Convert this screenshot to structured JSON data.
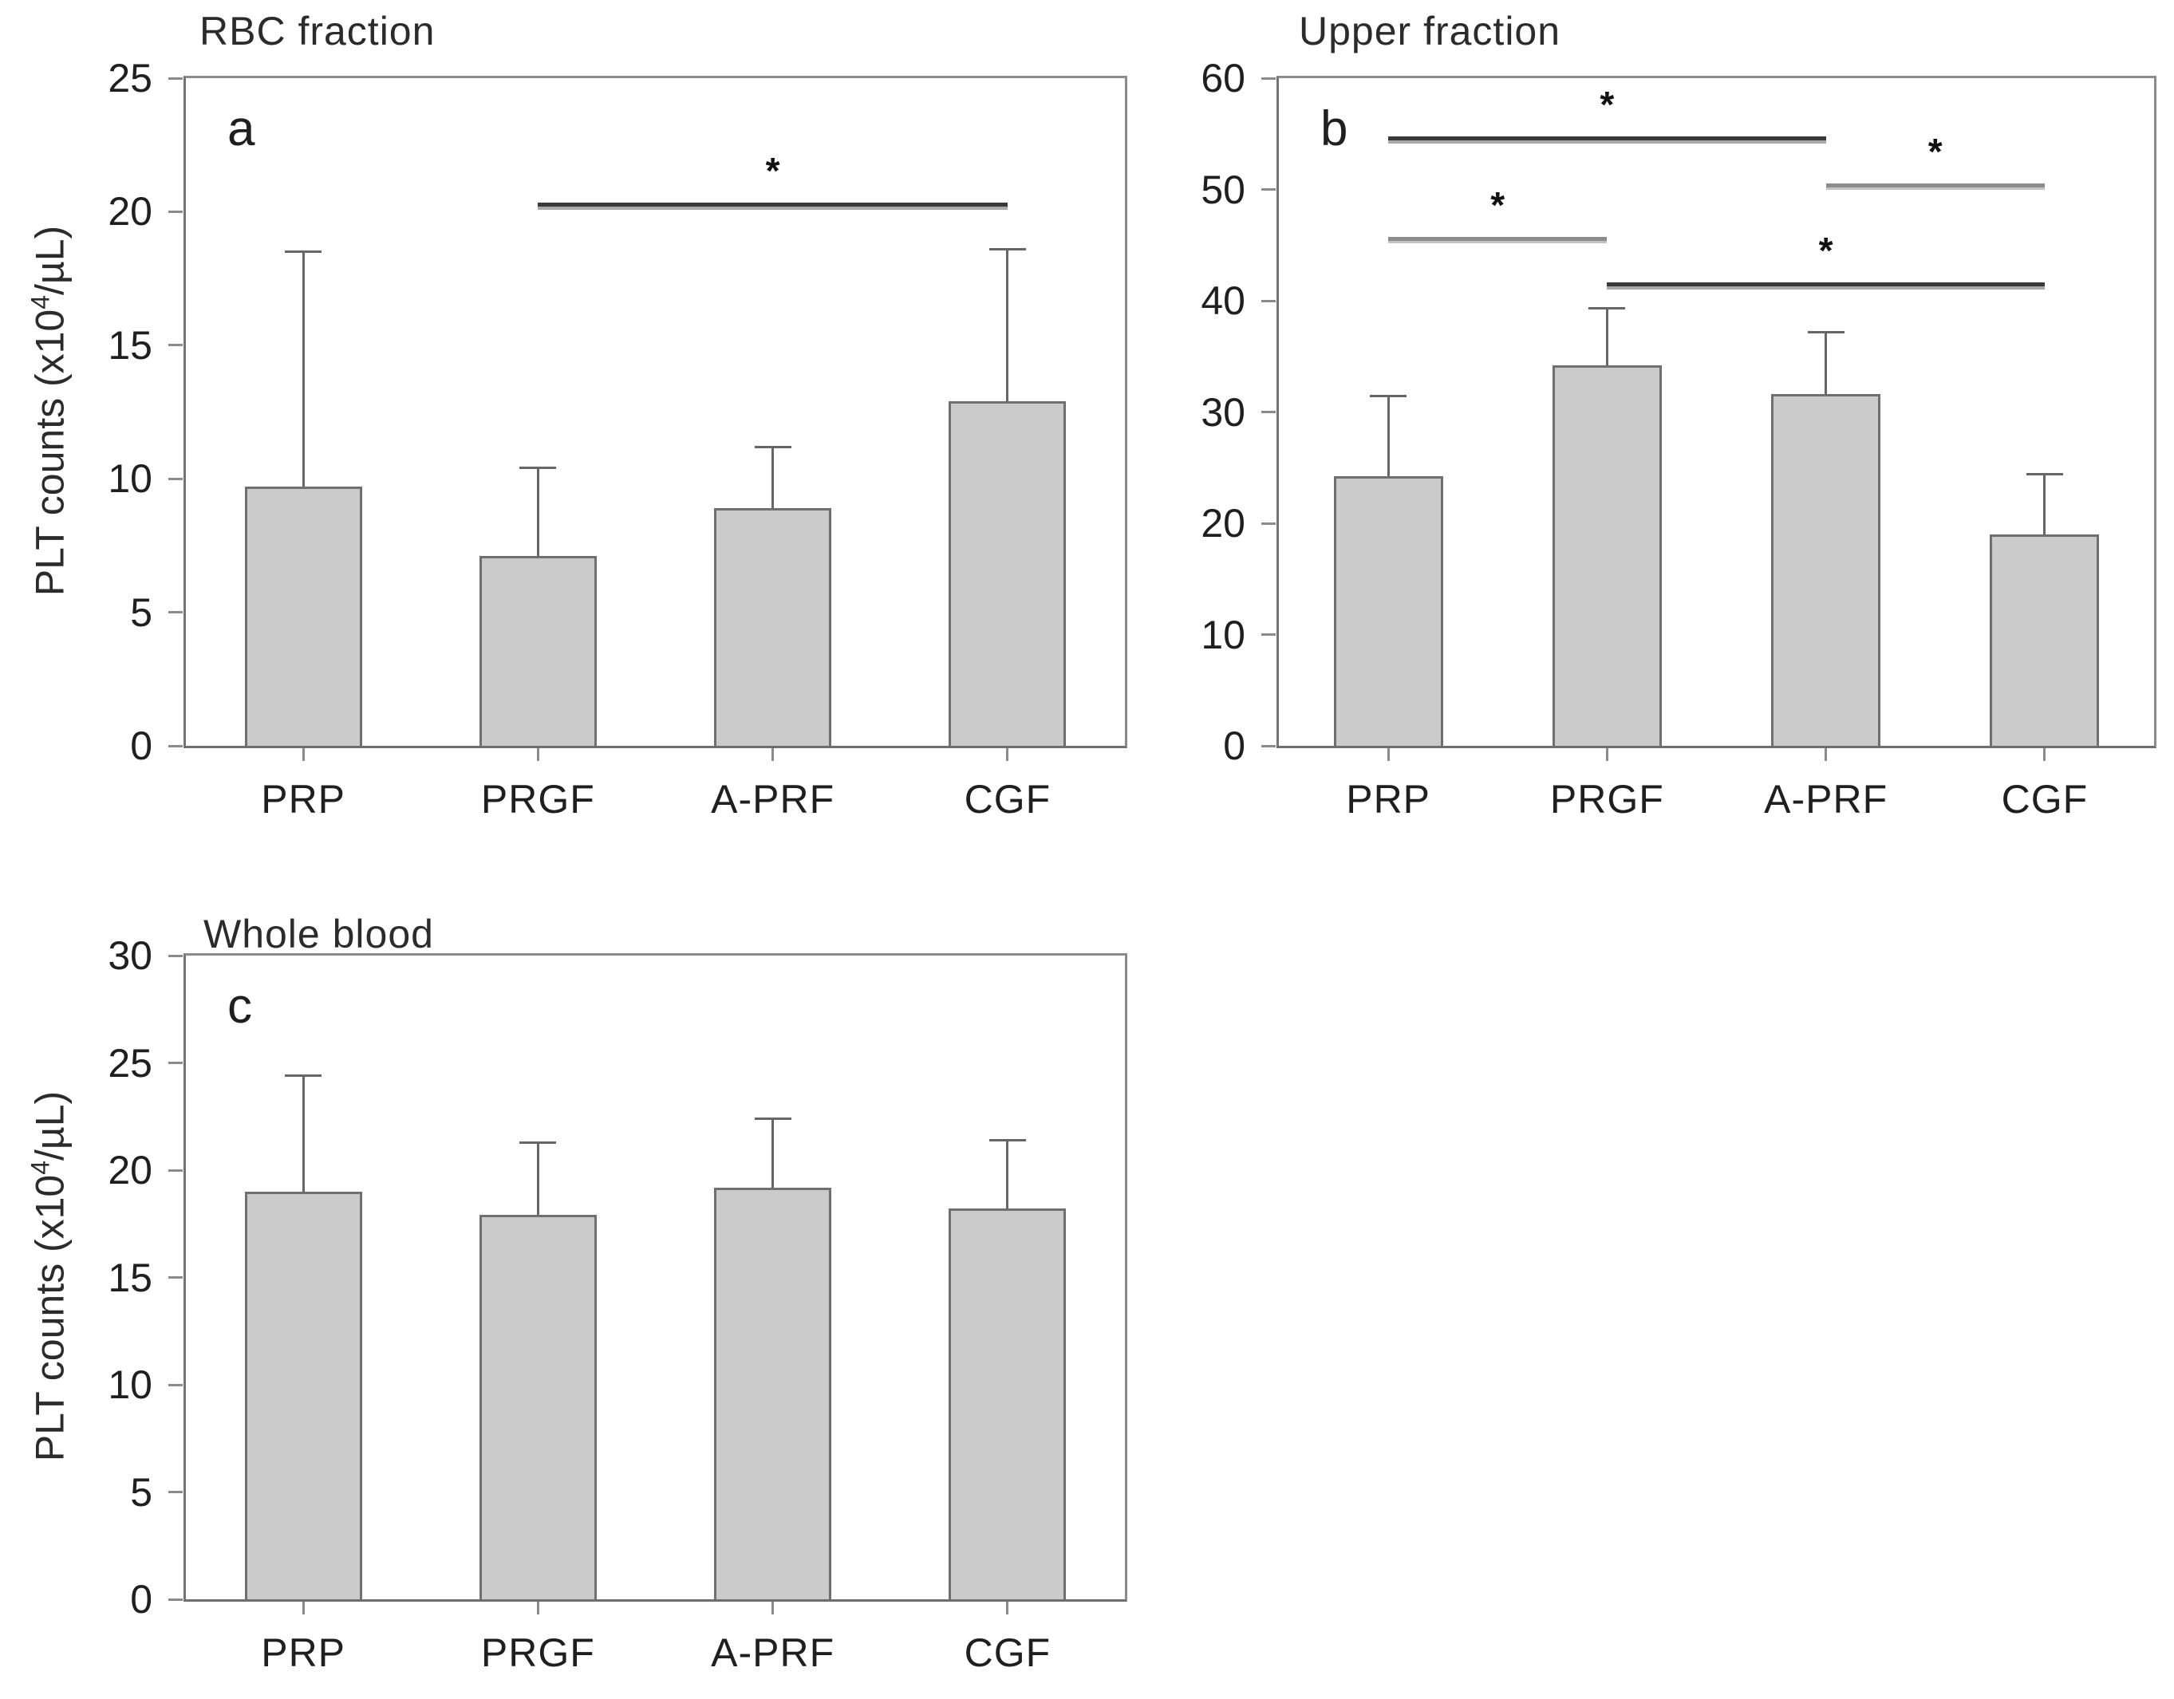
{
  "figure": {
    "background": "#ffffff",
    "bar_fill": "#cbcbcb",
    "bar_border": "#6f6f6f",
    "axis_color": "#8b8b8b",
    "error_bar_color": "#666666",
    "sig_line_dark": "#3a3a3a",
    "sig_line_gray": "#8c8c8c",
    "text_color": "#1f1f1f"
  },
  "chart_data": [
    {
      "type": "bar",
      "panel_letter": "a",
      "title": "RBC fraction",
      "ylabel_parts": {
        "prefix": "PLT counts (x10",
        "sup": "4",
        "suffix": "/µL)"
      },
      "categories": [
        "PRP",
        "PRGF",
        "A-PRF",
        "CGF"
      ],
      "values": [
        9.7,
        7.1,
        8.9,
        12.9
      ],
      "error_tops": [
        18.5,
        10.4,
        11.2,
        18.6
      ],
      "ylim": [
        0,
        25
      ],
      "yticks": [
        0,
        5,
        10,
        15,
        20,
        25
      ],
      "grid": false,
      "significance_lines": [
        {
          "from": 1,
          "to": 3,
          "y": 20.2,
          "label": "*",
          "style": "dark"
        }
      ]
    },
    {
      "type": "bar",
      "panel_letter": "b",
      "title": "Upper fraction",
      "ylabel_parts": null,
      "categories": [
        "PRP",
        "PRGF",
        "A-PRF",
        "CGF"
      ],
      "values": [
        24.2,
        34.2,
        31.6,
        19.0
      ],
      "error_tops": [
        31.4,
        39.3,
        37.2,
        24.4
      ],
      "ylim": [
        0,
        60
      ],
      "yticks": [
        0,
        10,
        20,
        30,
        40,
        50,
        60
      ],
      "grid": false,
      "significance_lines": [
        {
          "from": 0,
          "to": 2,
          "y": 54.4,
          "label": "*",
          "style": "dark"
        },
        {
          "from": 2,
          "to": 3,
          "y": 50.2,
          "label": "*",
          "style": "gray"
        },
        {
          "from": 0,
          "to": 1,
          "y": 45.4,
          "label": "*",
          "style": "gray"
        },
        {
          "from": 1,
          "to": 3,
          "y": 41.3,
          "label": "*",
          "style": "dark"
        }
      ]
    },
    {
      "type": "bar",
      "panel_letter": "c",
      "title": "Whole blood",
      "ylabel_parts": {
        "prefix": "PLT counts (x10",
        "sup": "4",
        "suffix": "/µL)"
      },
      "categories": [
        "PRP",
        "PRGF",
        "A-PRF",
        "CGF"
      ],
      "values": [
        19.0,
        17.9,
        19.2,
        18.2
      ],
      "error_tops": [
        24.4,
        21.3,
        22.4,
        21.4
      ],
      "ylim": [
        0,
        30
      ],
      "yticks": [
        0,
        5,
        10,
        15,
        20,
        25,
        30
      ],
      "grid": false,
      "significance_lines": []
    }
  ]
}
